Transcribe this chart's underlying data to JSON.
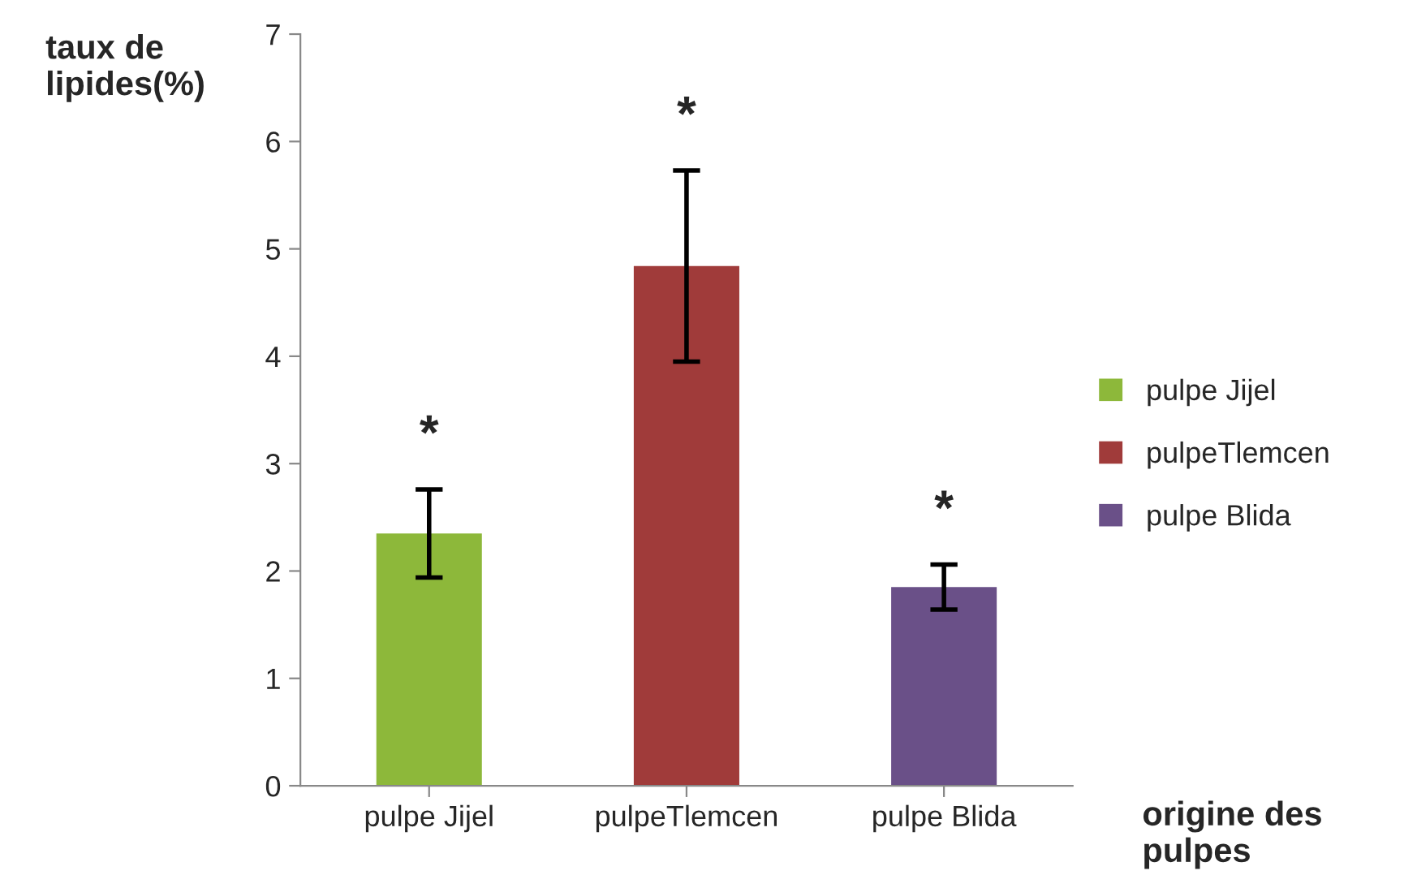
{
  "chart_data": {
    "type": "bar",
    "ylabel": "taux de\nlipides(%)",
    "xlabel": "origine des\npulpes",
    "categories": [
      "pulpe Jijel",
      "pulpeTlemcen",
      "pulpe Blida"
    ],
    "series": [
      {
        "name": "pulpe Jijel",
        "color": "#8db83a",
        "values": [
          2.35,
          null,
          null
        ],
        "errors": [
          0.41,
          null,
          null
        ]
      },
      {
        "name": "pulpeTlemcen",
        "color": "#a03b3a",
        "values": [
          null,
          4.84,
          null
        ],
        "errors": [
          null,
          0.89,
          null
        ]
      },
      {
        "name": "pulpe Blida",
        "color": "#6a5088",
        "values": [
          null,
          null,
          1.85
        ],
        "errors": [
          null,
          null,
          0.21
        ]
      }
    ],
    "ylim": [
      0,
      7
    ],
    "yticks": [
      0,
      1,
      2,
      3,
      4,
      5,
      6,
      7
    ],
    "grid": false,
    "legend": "right",
    "annotations": [
      "*",
      "*",
      "*"
    ]
  }
}
